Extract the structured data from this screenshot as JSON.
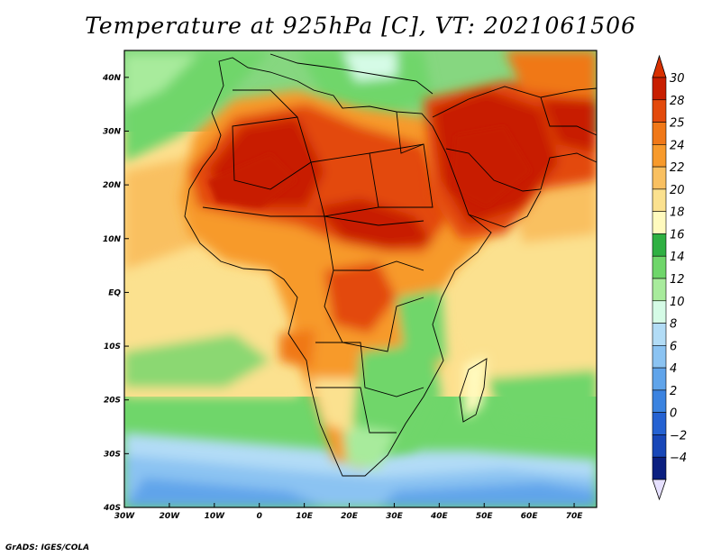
{
  "title": "Temperature at 925hPa [C], VT: 2021061506",
  "credit": "GrADS: IGES/COLA",
  "map": {
    "lon_range": [
      -30,
      75
    ],
    "lat_range": [
      -40,
      45
    ],
    "lon_ticks": [
      "30W",
      "20W",
      "10W",
      "0",
      "10E",
      "20E",
      "30E",
      "40E",
      "50E",
      "60E",
      "70E"
    ],
    "lat_ticks": [
      "40N",
      "30N",
      "20N",
      "10N",
      "EQ",
      "10S",
      "20S",
      "30S",
      "40S"
    ],
    "variable": "Temperature at 925hPa",
    "unit": "C",
    "valid_time": "2021061506"
  },
  "colorbar": {
    "labels": [
      "30",
      "28",
      "25",
      "24",
      "22",
      "20",
      "18",
      "16",
      "14",
      "12",
      "10",
      "8",
      "6",
      "4",
      "2",
      "0",
      "−2",
      "−4"
    ],
    "colors": [
      "#c81e00",
      "#e34a0c",
      "#f07818",
      "#f79a2c",
      "#f9c061",
      "#fbe18f",
      "#fffabe",
      "#2fb042",
      "#6fd66a",
      "#a8eb9c",
      "#d5fbe6",
      "#b2dcf6",
      "#8bc3f2",
      "#60a4ea",
      "#3b83e0",
      "#2562d2",
      "#1847b8",
      "#0b1f80"
    ],
    "top_color": "#d83000",
    "bottom_color": "#e6e0ff"
  }
}
